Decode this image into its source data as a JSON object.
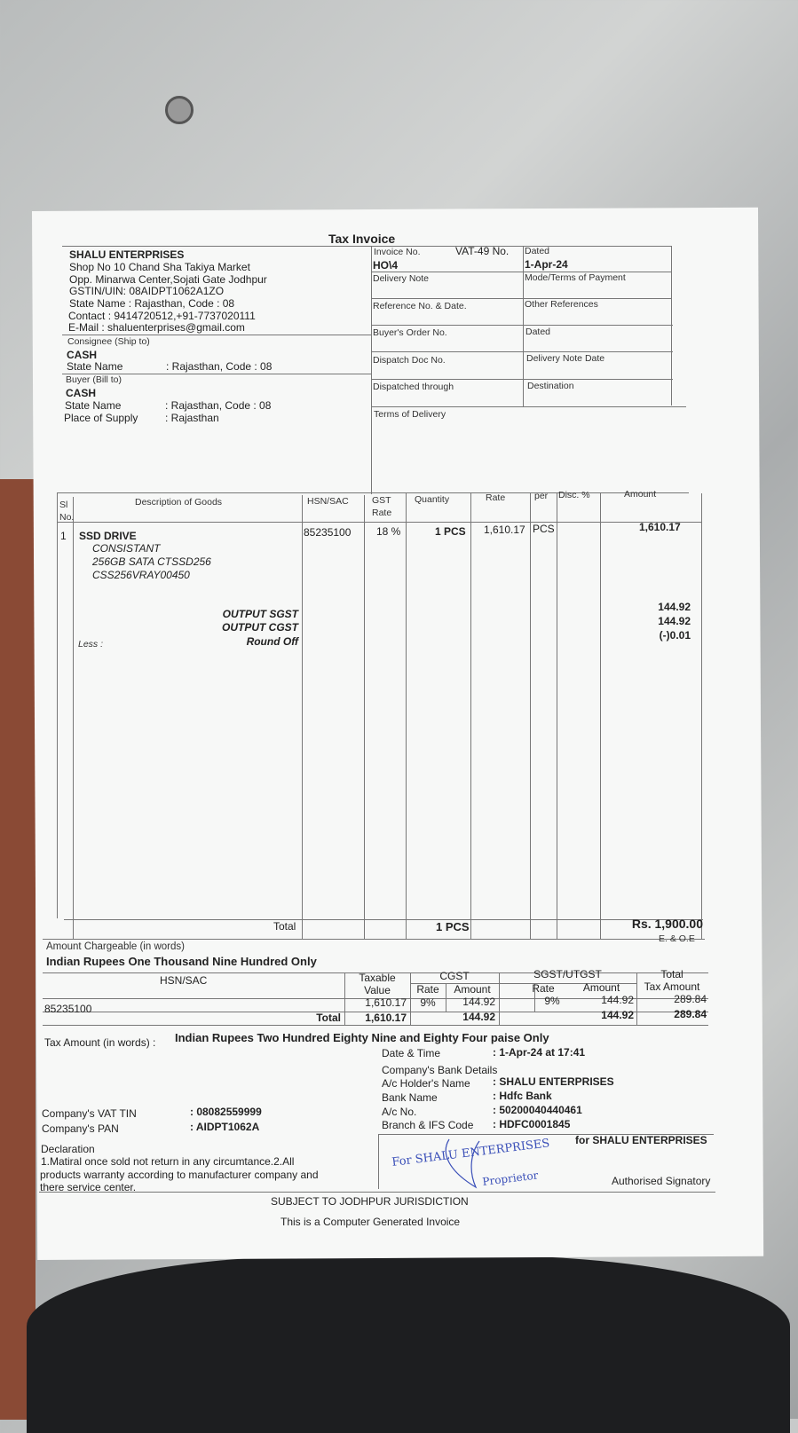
{
  "title": "Tax Invoice",
  "seller": {
    "name": "SHALU ENTERPRISES",
    "lines": [
      "Shop No 10 Chand Sha Takiya Market",
      "Opp. Minarwa Center,Sojati Gate Jodhpur",
      "GSTIN/UIN: 08AIDPT1062A1ZO",
      "State Name :  Rajasthan, Code : 08",
      "Contact : 9414720512,+91-7737020111",
      "E-Mail : shaluenterprises@gmail.com"
    ]
  },
  "consignee": {
    "label": "Consignee (Ship to)",
    "name": "CASH",
    "state_label": "State Name",
    "state_value": ": Rajasthan, Code : 08"
  },
  "buyer": {
    "label": "Buyer (Bill to)",
    "name": "CASH",
    "state_label": "State Name",
    "state_value": ": Rajasthan, Code : 08",
    "pos_label": "Place of Supply",
    "pos_value": ": Rajasthan"
  },
  "meta": {
    "invoice_no_label": "Invoice No.",
    "vat_label": "VAT-49 No.",
    "dated_label": "Dated",
    "invoice_no": "HO\\4",
    "date": "1-Apr-24",
    "delivery_note": "Delivery Note",
    "mode_terms": "Mode/Terms of Payment",
    "ref_no": "Reference No. & Date.",
    "other_refs": "Other References",
    "buyers_order": "Buyer's Order No.",
    "dated2": "Dated",
    "dispatch_doc": "Dispatch Doc No.",
    "delivery_note_date": "Delivery Note Date",
    "dispatched_through": "Dispatched through",
    "destination": "Destination",
    "terms_delivery": "Terms of Delivery"
  },
  "items_header": {
    "sl": "Sl",
    "no": "No.",
    "desc": "Description of Goods",
    "hsn": "HSN/SAC",
    "gst": "GST",
    "gst_rate": "Rate",
    "qty": "Quantity",
    "rate": "Rate",
    "per": "per",
    "disc": "Disc. %",
    "amount": "Amount"
  },
  "item": {
    "sl": "1",
    "name": "SSD DRIVE",
    "details": [
      "CONSISTANT",
      "256GB SATA CTSSD256",
      "CSS256VRAY00450"
    ],
    "hsn": "85235100",
    "gst": "18 %",
    "qty": "1 PCS",
    "rate": "1,610.17",
    "per": "PCS",
    "amount": "1,610.17"
  },
  "taxes": [
    {
      "label": "OUTPUT SGST",
      "amount": "144.92"
    },
    {
      "label": "OUTPUT CGST",
      "amount": "144.92"
    },
    {
      "label": "Round Off",
      "amount": "(-)0.01"
    }
  ],
  "less_label": "Less :",
  "total": {
    "label": "Total",
    "qty": "1 PCS",
    "amount": "Rs. 1,900.00",
    "eoe": "E. & O.E"
  },
  "amount_words": {
    "label": "Amount Chargeable (in words)",
    "value": "Indian Rupees One Thousand Nine Hundred Only"
  },
  "tax_table": {
    "h_hsn": "HSN/SAC",
    "h_taxable1": "Taxable",
    "h_taxable2": "Value",
    "h_cgst": "CGST",
    "h_sgst": "SGST/UTGST",
    "h_rate": "Rate",
    "h_amount": "Amount",
    "h_total1": "Total",
    "h_total2": "Tax Amount",
    "row": {
      "hsn": "85235100",
      "taxable": "1,610.17",
      "cgst_rate": "9%",
      "cgst_amt": "144.92",
      "sgst_rate": "9%",
      "sgst_amt": "144.92",
      "total": "289.84"
    },
    "totals": {
      "label": "Total",
      "taxable": "1,610.17",
      "cgst_amt": "144.92",
      "sgst_amt": "144.92",
      "total": "289.84"
    }
  },
  "tax_words": {
    "label": "Tax Amount (in words) :",
    "value": "Indian Rupees Two Hundred Eighty Nine and Eighty Four paise Only"
  },
  "datetime": {
    "label": "Date & Time",
    "value": ": 1-Apr-24 at 17:41"
  },
  "bank": {
    "title": "Company's Bank Details",
    "rows": [
      {
        "k": "A/c Holder's Name",
        "v": ": SHALU ENTERPRISES"
      },
      {
        "k": "Bank Name",
        "v": ": Hdfc Bank"
      },
      {
        "k": "A/c No.",
        "v": ": 50200040440461"
      },
      {
        "k": "Branch & IFS Code",
        "v": ": HDFC0001845"
      }
    ]
  },
  "company": {
    "vat_label": "Company's VAT TIN",
    "vat": ": 08082559999",
    "pan_label": "Company's PAN",
    "pan": ": AIDPT1062A"
  },
  "declaration": {
    "label": "Declaration",
    "lines": [
      "1.Matiral once sold not return in any circumtance.2.All",
      "products warranty according to manufacturer company and",
      "there service center."
    ]
  },
  "signatory": {
    "for": "for SHALU ENTERPRISES",
    "label": "Authorised Signatory"
  },
  "stamp": {
    "line1": "For SHALU ENTERPRISES",
    "line2": "Proprietor"
  },
  "footer": {
    "jurisdiction": "SUBJECT TO JODHPUR JURISDICTION",
    "note": "This is a Computer Generated Invoice"
  }
}
